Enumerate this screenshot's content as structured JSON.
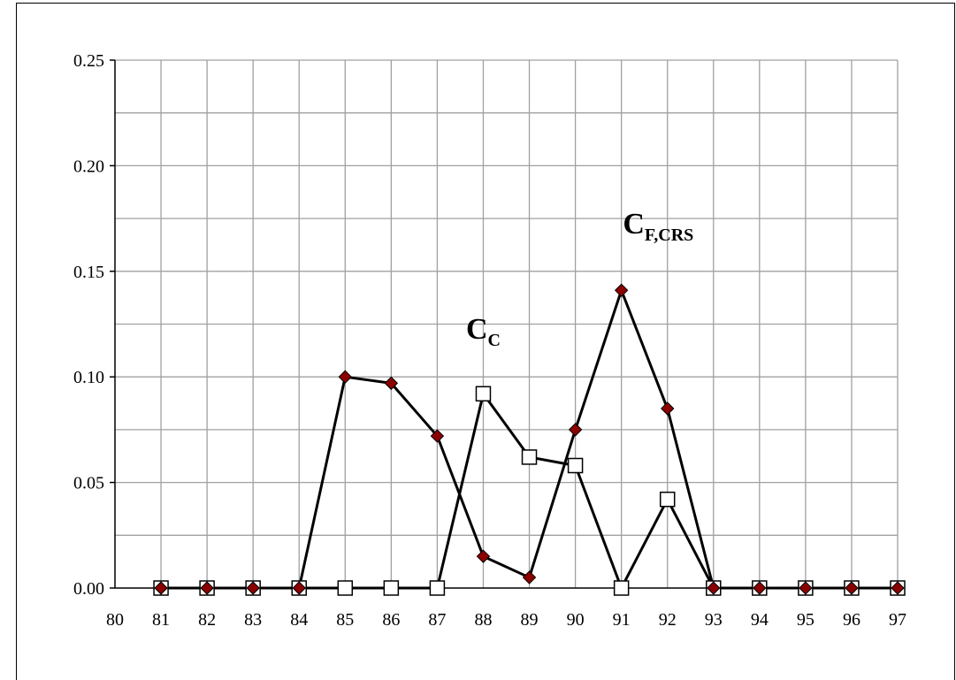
{
  "chart_data": {
    "type": "line",
    "title": "",
    "xlabel": "",
    "ylabel": "",
    "x": [
      81,
      82,
      83,
      84,
      85,
      86,
      87,
      88,
      89,
      90,
      91,
      92,
      93,
      94,
      95,
      96,
      97
    ],
    "xlim": [
      80,
      97
    ],
    "ylim": [
      0,
      0.25
    ],
    "x_tick_labels": [
      "80",
      "81",
      "82",
      "83",
      "84",
      "85",
      "86",
      "87",
      "88",
      "89",
      "90",
      "91",
      "92",
      "93",
      "94",
      "95",
      "96",
      "97"
    ],
    "y_tick_labels": [
      "0.00",
      "0.05",
      "0.10",
      "0.15",
      "0.20",
      "0.25"
    ],
    "grid": true,
    "series": [
      {
        "label": "C_C",
        "marker": "open-square",
        "color": "#000000",
        "values": [
          0,
          0,
          0,
          0,
          0,
          0,
          0,
          0.092,
          0.062,
          0.058,
          0,
          0.042,
          0,
          0,
          0,
          0,
          0
        ]
      },
      {
        "label": "C_F,CRS",
        "marker": "diamond",
        "color": "#8b0000",
        "values": [
          0,
          0,
          0,
          0,
          0.1,
          0.097,
          0.072,
          0.015,
          0.005,
          0.075,
          0.141,
          0.085,
          0,
          0,
          0,
          0,
          0
        ]
      }
    ],
    "annotations": [
      {
        "main": "C",
        "sub": "C",
        "x": 88,
        "y": 0.118
      },
      {
        "main": "C",
        "sub": "F,CRS",
        "x": 91.8,
        "y": 0.168
      }
    ]
  }
}
